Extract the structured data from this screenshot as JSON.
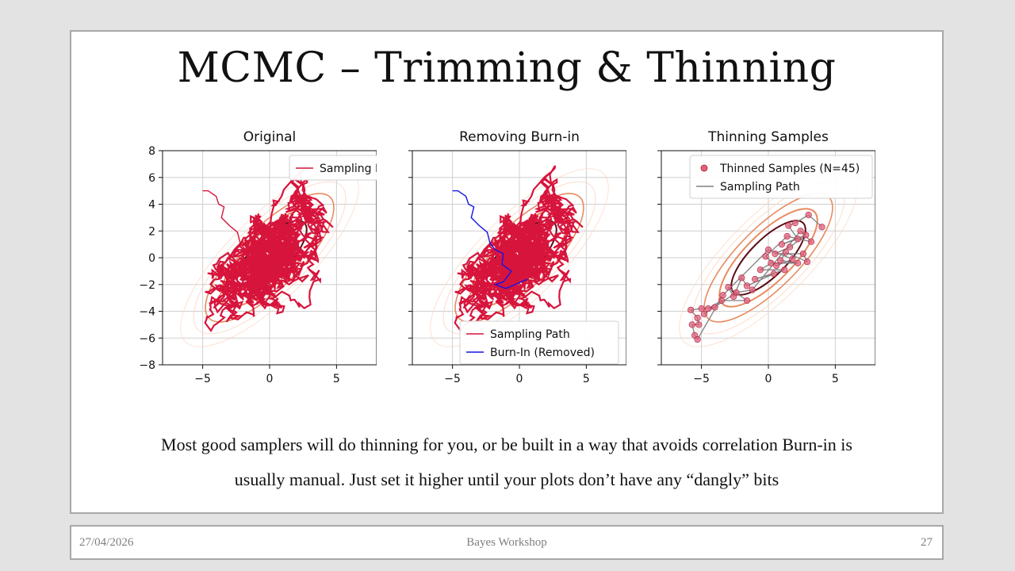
{
  "slide": {
    "title": "MCMC – Trimming & Thinning",
    "caption_line1": "Most good samplers will do thinning for you, or be built in a way that avoids correlation Burn-in is",
    "caption_line2": "usually manual. Just set it higher until your plots don’t have any “dangly” bits"
  },
  "footer": {
    "date": "27/04/2026",
    "center": "Bayes Workshop",
    "page": "27"
  },
  "colors": {
    "sampling_path": "#d7143c",
    "burn_in": "#1414e6",
    "thinned_points": "#e0607a",
    "thinning_path": "#808080",
    "contour_dark": "#5a0a14",
    "contour_mid": "#e88a5e",
    "contour_light": "#fbd6c2"
  },
  "chart_data": [
    {
      "type": "line",
      "title": "Original",
      "xlim": [
        -8,
        8
      ],
      "ylim": [
        -8,
        8
      ],
      "xticks": [
        "−5",
        "0",
        "5"
      ],
      "yticks": [
        "8",
        "6",
        "4",
        "2",
        "0",
        "−2",
        "−4",
        "−6",
        "−8"
      ],
      "grid": true,
      "legend_position": "top-right",
      "series": [
        {
          "name": "Sampling Path",
          "color": "#d7143c"
        }
      ]
    },
    {
      "type": "line",
      "title": "Removing Burn-in",
      "xlim": [
        -8,
        8
      ],
      "ylim": [
        -8,
        8
      ],
      "xticks": [
        "−5",
        "0",
        "5"
      ],
      "grid": true,
      "legend_position": "bottom-right",
      "series": [
        {
          "name": "Sampling Path",
          "color": "#d7143c"
        },
        {
          "name": "Burn-In (Removed)",
          "color": "#1414e6"
        }
      ]
    },
    {
      "type": "scatter",
      "title": "Thinning Samples",
      "xlim": [
        -8,
        8
      ],
      "ylim": [
        -8,
        8
      ],
      "xticks": [
        "−5",
        "0",
        "5"
      ],
      "grid": true,
      "legend_position": "top-right",
      "series": [
        {
          "name": "Thinned Samples (N=45)",
          "color": "#e0607a",
          "points": [
            [
              4.0,
              2.3
            ],
            [
              3.0,
              3.2
            ],
            [
              2.0,
              2.6
            ],
            [
              1.5,
              2.4
            ],
            [
              2.2,
              1.4
            ],
            [
              1.0,
              1.0
            ],
            [
              2.8,
              1.7
            ],
            [
              1.6,
              0.8
            ],
            [
              0.5,
              0.3
            ],
            [
              2.6,
              0.3
            ],
            [
              2.9,
              -0.3
            ],
            [
              1.3,
              0.4
            ],
            [
              0.9,
              -0.2
            ],
            [
              2.2,
              -0.4
            ],
            [
              0.2,
              -0.4
            ],
            [
              -0.6,
              -0.9
            ],
            [
              1.2,
              -0.9
            ],
            [
              -1.0,
              -1.6
            ],
            [
              0.4,
              -1.2
            ],
            [
              -1.6,
              -2.1
            ],
            [
              -2.0,
              -1.5
            ],
            [
              -2.6,
              -2.9
            ],
            [
              -3.0,
              -2.2
            ],
            [
              -1.6,
              -3.2
            ],
            [
              -3.5,
              -3.2
            ],
            [
              -4.5,
              -3.8
            ],
            [
              -4.0,
              -3.7
            ],
            [
              -5.0,
              -3.8
            ],
            [
              -5.8,
              -3.9
            ],
            [
              -5.3,
              -4.5
            ],
            [
              -5.2,
              -5.0
            ],
            [
              -5.7,
              -5.0
            ],
            [
              -5.5,
              -5.8
            ],
            [
              -5.3,
              -6.1
            ],
            [
              -3.4,
              -2.8
            ],
            [
              0.0,
              0.6
            ],
            [
              1.8,
              -0.1
            ],
            [
              0.6,
              -0.6
            ],
            [
              -0.2,
              0.1
            ],
            [
              1.4,
              1.6
            ],
            [
              3.2,
              1.2
            ],
            [
              2.4,
              2.0
            ],
            [
              -1.2,
              -2.4
            ],
            [
              -2.4,
              -2.6
            ],
            [
              -4.8,
              -4.2
            ]
          ]
        },
        {
          "name": "Sampling Path",
          "color": "#808080"
        }
      ]
    }
  ]
}
